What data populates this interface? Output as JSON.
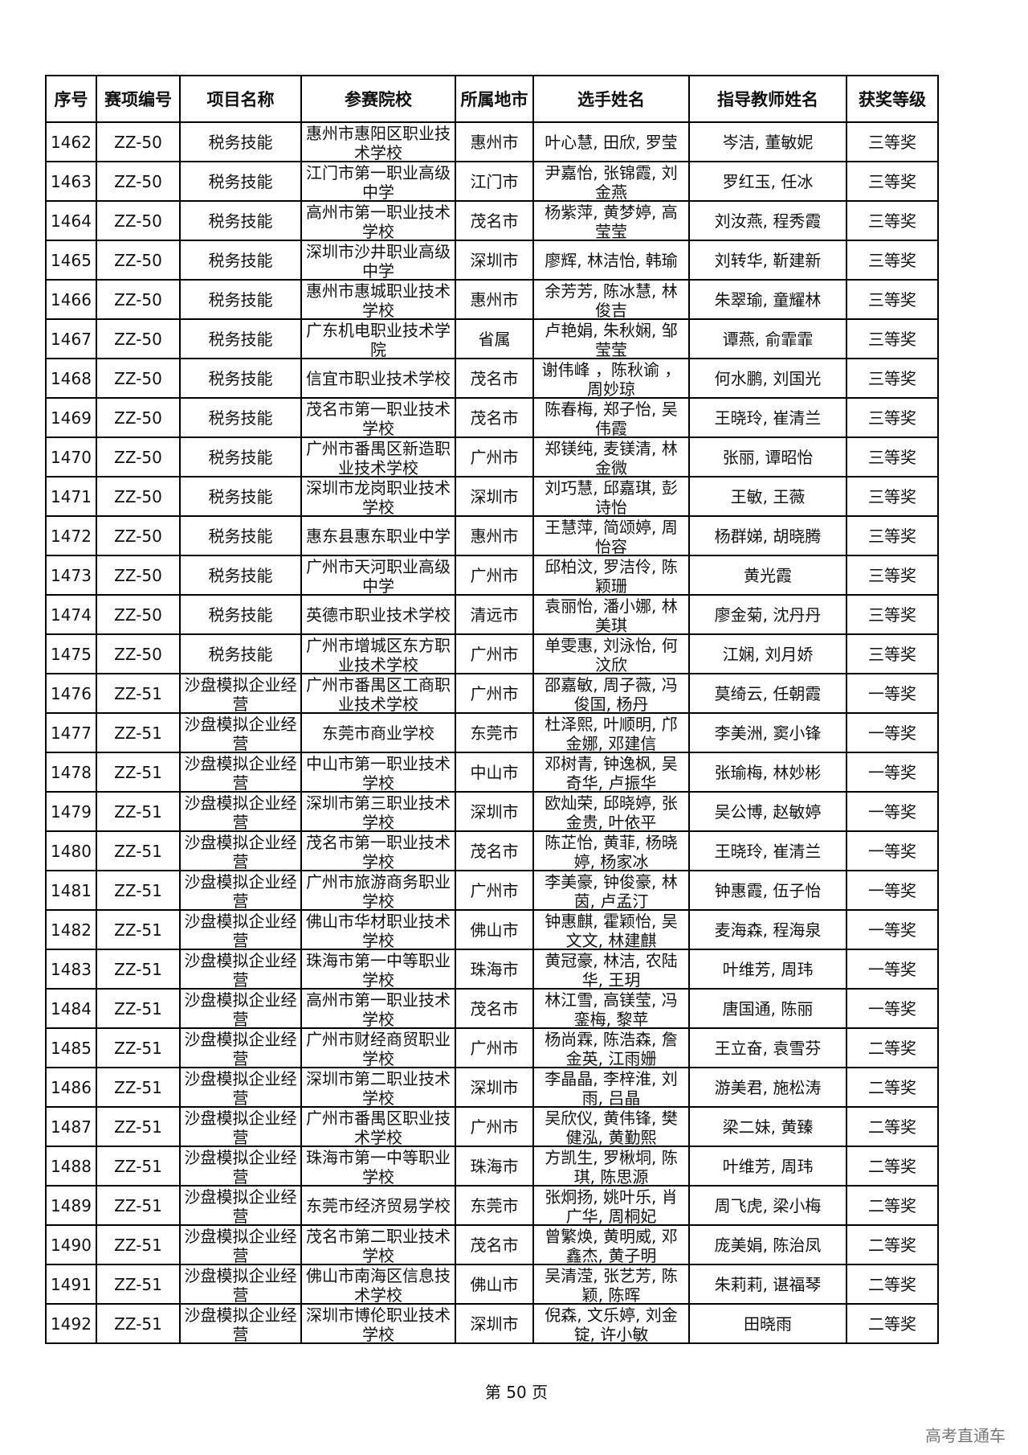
{
  "headers": [
    "序号",
    "赛项编号",
    "项目名称",
    "参赛院校",
    "所属地市",
    "选手姓名",
    "指导教师姓名",
    "获奖等级"
  ],
  "rows": [
    [
      "1462",
      "ZZ-50",
      "税务技能",
      "惠州市惠阳区职业技术学校",
      "惠州市",
      "叶心慧, 田欣, 罗莹",
      "岑洁, 董敏妮",
      "三等奖"
    ],
    [
      "1463",
      "ZZ-50",
      "税务技能",
      "江门市第一职业高级中学",
      "江门市",
      "尹嘉怡, 张锦霞, 刘金燕",
      "罗红玉, 任冰",
      "三等奖"
    ],
    [
      "1464",
      "ZZ-50",
      "税务技能",
      "高州市第一职业技术学校",
      "茂名市",
      "杨紫萍, 黄梦婷, 高莹莹",
      "刘汝燕, 程秀霞",
      "三等奖"
    ],
    [
      "1465",
      "ZZ-50",
      "税务技能",
      "深圳市沙井职业高级中学",
      "深圳市",
      "廖辉, 林洁怡, 韩瑜",
      "刘转华, 靳建新",
      "三等奖"
    ],
    [
      "1466",
      "ZZ-50",
      "税务技能",
      "惠州市惠城职业技术学校",
      "惠州市",
      "余芳芳, 陈冰慧, 林俊吉",
      "朱翠瑜, 童耀林",
      "三等奖"
    ],
    [
      "1467",
      "ZZ-50",
      "税务技能",
      "广东机电职业技术学院",
      "省属",
      "卢艳娟, 朱秋娴, 邹莹莹",
      "谭燕, 俞霏霏",
      "三等奖"
    ],
    [
      "1468",
      "ZZ-50",
      "税务技能",
      "信宜市职业技术学校",
      "茂名市",
      "谢伟峰 ，陈秋谕 ，周妙琼",
      "何水鹏, 刘国光",
      "三等奖"
    ],
    [
      "1469",
      "ZZ-50",
      "税务技能",
      "茂名市第一职业技术学校",
      "茂名市",
      "陈春梅, 郑子怡, 吴伟霞",
      "王晓玲, 崔清兰",
      "三等奖"
    ],
    [
      "1470",
      "ZZ-50",
      "税务技能",
      "广州市番禺区新造职业技术学校",
      "广州市",
      "郑镁纯, 麦镁清, 林金微",
      "张丽, 谭昭怡",
      "三等奖"
    ],
    [
      "1471",
      "ZZ-50",
      "税务技能",
      "深圳市龙岗职业技术学校",
      "深圳市",
      "刘巧慧, 邱嘉琪, 彭诗怡",
      "王敏, 王薇",
      "三等奖"
    ],
    [
      "1472",
      "ZZ-50",
      "税务技能",
      "惠东县惠东职业中学",
      "惠州市",
      "王慧萍, 简颂婷, 周怡容",
      "杨群娣, 胡晓腾",
      "三等奖"
    ],
    [
      "1473",
      "ZZ-50",
      "税务技能",
      "广州市天河职业高级中学",
      "广州市",
      "邱柏汶, 罗洁伶, 陈颖珊",
      "黄光霞",
      "三等奖"
    ],
    [
      "1474",
      "ZZ-50",
      "税务技能",
      "英德市职业技术学校",
      "清远市",
      "袁丽怡, 潘小娜, 林美琪",
      "廖金菊, 沈丹丹",
      "三等奖"
    ],
    [
      "1475",
      "ZZ-50",
      "税务技能",
      "广州市增城区东方职业技术学校",
      "广州市",
      "单雯惠, 刘泳怡, 何汶欣",
      "江娴, 刘月娇",
      "三等奖"
    ],
    [
      "1476",
      "ZZ-51",
      "沙盘模拟企业经营",
      "广州市番禺区工商职业技术学校",
      "广州市",
      "邵嘉敏, 周子薇, 冯俊国, 杨丹",
      "莫绮云, 任朝霞",
      "一等奖"
    ],
    [
      "1477",
      "ZZ-51",
      "沙盘模拟企业经营",
      "东莞市商业学校",
      "东莞市",
      "杜泽熙, 叶顺明, 邝金娜, 邓建信",
      "李美洲, 窦小锋",
      "一等奖"
    ],
    [
      "1478",
      "ZZ-51",
      "沙盘模拟企业经营",
      "中山市第一职业技术学校",
      "中山市",
      "邓树青, 钟逸枫, 吴奇华, 卢振华",
      "张瑜梅, 林妙彬",
      "一等奖"
    ],
    [
      "1479",
      "ZZ-51",
      "沙盘模拟企业经营",
      "深圳市第三职业技术学校",
      "深圳市",
      "欧灿荣, 邱晓婷, 张金贵, 叶依平",
      "吴公博, 赵敏婷",
      "一等奖"
    ],
    [
      "1480",
      "ZZ-51",
      "沙盘模拟企业经营",
      "茂名市第一职业技术学校",
      "茂名市",
      "陈芷怡, 黄菲, 杨晓婷, 杨家冰",
      "王晓玲, 崔清兰",
      "一等奖"
    ],
    [
      "1481",
      "ZZ-51",
      "沙盘模拟企业经营",
      "广州市旅游商务职业学校",
      "广州市",
      "李美豪, 钟俊豪, 林茵, 卢孟汀",
      "钟惠霞, 伍子怡",
      "一等奖"
    ],
    [
      "1482",
      "ZZ-51",
      "沙盘模拟企业经营",
      "佛山市华材职业技术学校",
      "佛山市",
      "钟惠麒, 霍颖怡, 吴文文, 林建麒",
      "麦海森, 程海泉",
      "一等奖"
    ],
    [
      "1483",
      "ZZ-51",
      "沙盘模拟企业经营",
      "珠海市第一中等职业学校",
      "珠海市",
      "黄冠豪, 林洁, 农陆华, 王玥",
      "叶维芳, 周玮",
      "一等奖"
    ],
    [
      "1484",
      "ZZ-51",
      "沙盘模拟企业经营",
      "高州市第一职业技术学校",
      "茂名市",
      "林江雪, 高镁莹, 冯銮梅, 黎苹",
      "唐国通, 陈丽",
      "一等奖"
    ],
    [
      "1485",
      "ZZ-51",
      "沙盘模拟企业经营",
      "广州市财经商贸职业学校",
      "广州市",
      "杨尚霖, 陈浩森, 詹金英, 江雨姗",
      "王立奋, 袁雪芬",
      "二等奖"
    ],
    [
      "1486",
      "ZZ-51",
      "沙盘模拟企业经营",
      "深圳市第二职业技术学校",
      "深圳市",
      "李晶晶, 李梓淮, 刘雨, 吕晶",
      "游美君, 施松涛",
      "二等奖"
    ],
    [
      "1487",
      "ZZ-51",
      "沙盘模拟企业经营",
      "广州市番禺区职业技术学校",
      "广州市",
      "吴欣仪, 黄伟锋, 樊健泓, 黄勤熙",
      "梁二妹, 黄臻",
      "二等奖"
    ],
    [
      "1488",
      "ZZ-51",
      "沙盘模拟企业经营",
      "珠海市第一中等职业学校",
      "珠海市",
      "方凯生, 罗楸垌, 陈琪, 陈思源",
      "叶维芳, 周玮",
      "二等奖"
    ],
    [
      "1489",
      "ZZ-51",
      "沙盘模拟企业经营",
      "东莞市经济贸易学校",
      "东莞市",
      "张炯扬, 姚叶乐, 肖广华, 周桐妃",
      "周飞虎, 梁小梅",
      "二等奖"
    ],
    [
      "1490",
      "ZZ-51",
      "沙盘模拟企业经营",
      "茂名市第二职业技术学校",
      "茂名市",
      "曾繁焕, 黄明威, 邓鑫杰, 黄子明",
      "庞美娟, 陈治凤",
      "二等奖"
    ],
    [
      "1491",
      "ZZ-51",
      "沙盘模拟企业经营",
      "佛山市南海区信息技术学校",
      "佛山市",
      "吴清滢, 张艺芳, 陈颖, 陈晖",
      "朱莉莉, 谌福琴",
      "二等奖"
    ],
    [
      "1492",
      "ZZ-51",
      "沙盘模拟企业经营",
      "深圳市博伦职业技术学校",
      "深圳市",
      "倪森, 文乐婷, 刘金锭, 许小敏",
      "田晓雨",
      "二等奖"
    ]
  ],
  "footer": {
    "page_label": "第 50 页"
  },
  "watermark": "高考直通车"
}
